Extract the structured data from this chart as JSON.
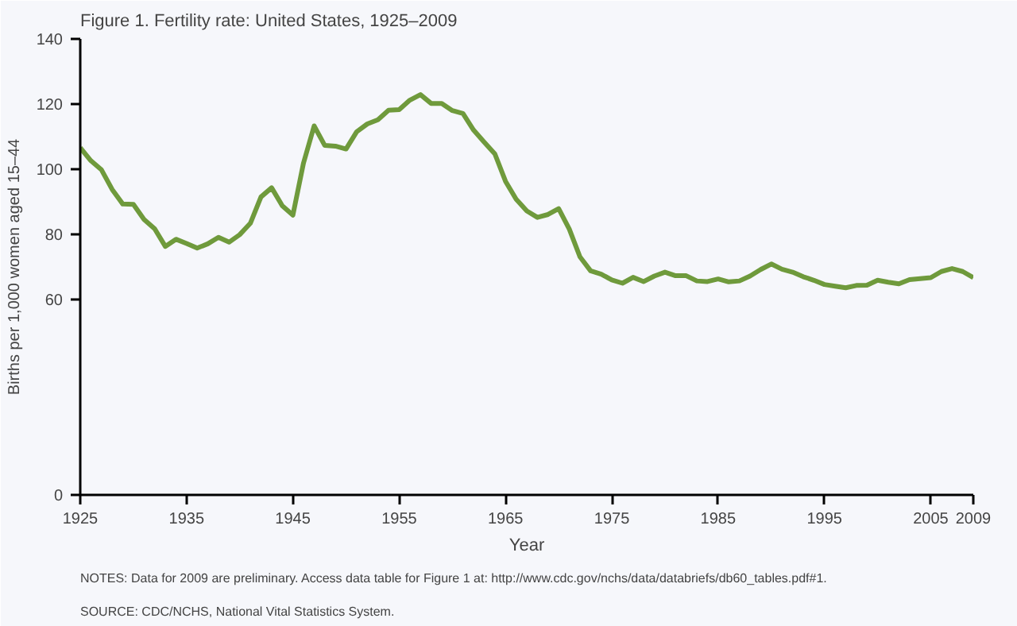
{
  "chart_data": {
    "type": "line",
    "title": "Figure 1. Fertility rate: United States, 1925–2009",
    "xlabel": "Year",
    "ylabel": "Births per 1,000 women aged 15–44",
    "x": [
      1925,
      1926,
      1927,
      1928,
      1929,
      1930,
      1931,
      1932,
      1933,
      1934,
      1935,
      1936,
      1937,
      1938,
      1939,
      1940,
      1941,
      1942,
      1943,
      1944,
      1945,
      1946,
      1947,
      1948,
      1949,
      1950,
      1951,
      1952,
      1953,
      1954,
      1955,
      1956,
      1957,
      1958,
      1959,
      1960,
      1961,
      1962,
      1963,
      1964,
      1965,
      1966,
      1967,
      1968,
      1969,
      1970,
      1971,
      1972,
      1973,
      1974,
      1975,
      1976,
      1977,
      1978,
      1979,
      1980,
      1981,
      1982,
      1983,
      1984,
      1985,
      1986,
      1987,
      1988,
      1989,
      1990,
      1991,
      1992,
      1993,
      1994,
      1995,
      1996,
      1997,
      1998,
      1999,
      2000,
      2001,
      2002,
      2003,
      2004,
      2005,
      2006,
      2007,
      2008,
      2009
    ],
    "series": [
      {
        "color": "#6f9a3c",
        "values": [
          106.6,
          102.6,
          99.8,
          93.8,
          89.3,
          89.2,
          84.6,
          81.7,
          76.3,
          78.5,
          77.2,
          75.8,
          77.1,
          79.1,
          77.6,
          79.9,
          83.4,
          91.5,
          94.3,
          88.8,
          85.9,
          101.9,
          113.3,
          107.3,
          107.1,
          106.2,
          111.5,
          113.9,
          115.2,
          118.1,
          118.3,
          121.2,
          122.9,
          120.2,
          120.2,
          118.0,
          117.1,
          112.0,
          108.3,
          104.7,
          96.3,
          90.8,
          87.2,
          85.2,
          86.1,
          87.9,
          81.6,
          73.1,
          68.8,
          67.8,
          66.0,
          65.0,
          66.8,
          65.5,
          67.2,
          68.4,
          67.3,
          67.3,
          65.7,
          65.5,
          66.3,
          65.4,
          65.7,
          67.2,
          69.2,
          70.9,
          69.3,
          68.4,
          67.0,
          65.9,
          64.6,
          64.1,
          63.6,
          64.3,
          64.4,
          65.9,
          65.3,
          64.8,
          66.1,
          66.4,
          66.7,
          68.6,
          69.5,
          68.6,
          66.7
        ]
      }
    ],
    "xlim": [
      1925,
      2009
    ],
    "xticks": [
      1925,
      1935,
      1945,
      1955,
      1965,
      1975,
      1985,
      1995,
      2005,
      2009
    ],
    "ylim": [
      0,
      140
    ],
    "yticks": [
      0,
      60,
      80,
      100,
      120,
      140
    ],
    "grid": false,
    "line_style": "solid",
    "marker": "none",
    "annotations": [
      "NOTES: Data for 2009 are preliminary. Access data table for Figure 1 at: http://www.cdc.gov/nchs/data/databriefs/db60_tables.pdf#1.",
      "SOURCE: CDC/NCHS, National Vital Statistics System."
    ]
  }
}
